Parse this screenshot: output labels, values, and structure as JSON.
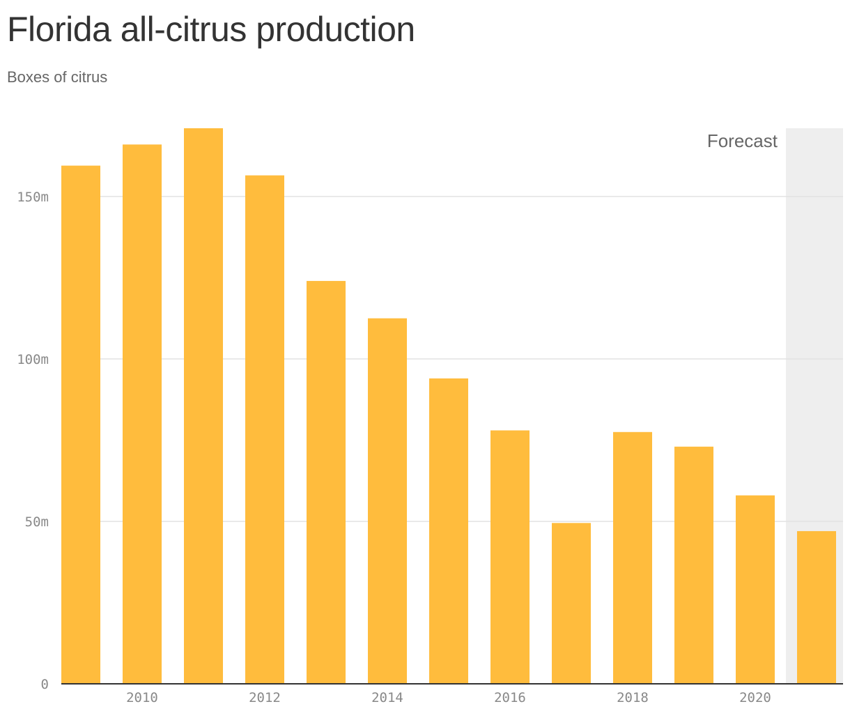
{
  "chart_data": {
    "type": "bar",
    "title": "Florida all-citrus production",
    "subtitle": "Boxes of citrus",
    "x": [
      2009,
      2010,
      2011,
      2012,
      2013,
      2014,
      2015,
      2016,
      2017,
      2018,
      2019,
      2020,
      2021
    ],
    "values": [
      159.5,
      166,
      171,
      156.5,
      124,
      112.5,
      94,
      78,
      49.5,
      77.5,
      73,
      58,
      47
    ],
    "x_ticks": [
      {
        "value": 2010,
        "label": "2010"
      },
      {
        "value": 2012,
        "label": "2012"
      },
      {
        "value": 2014,
        "label": "2014"
      },
      {
        "value": 2016,
        "label": "2016"
      },
      {
        "value": 2018,
        "label": "2018"
      },
      {
        "value": 2020,
        "label": "2020"
      }
    ],
    "y_ticks": [
      {
        "value": 0,
        "label": "0"
      },
      {
        "value": 50,
        "label": "50m"
      },
      {
        "value": 100,
        "label": "100m"
      },
      {
        "value": 150,
        "label": "150m"
      }
    ],
    "ylim": [
      0,
      171
    ],
    "grid": true,
    "forecast": {
      "label": "Forecast",
      "from": 2021
    },
    "colors": {
      "bar": "#FFBC3D",
      "forecast_band": "#EEEEEE",
      "grid": "#E2E2E2",
      "axis": "#333333",
      "title": "#333333",
      "subtitle": "#666666",
      "tick": "#888888"
    }
  }
}
